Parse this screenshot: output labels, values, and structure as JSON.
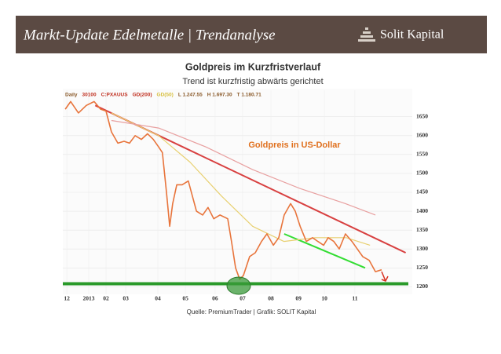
{
  "header": {
    "title": "Markt-Update Edelmetalle | Trendanalyse",
    "brand": "Solit Kapital"
  },
  "chart_data": {
    "type": "line",
    "title": "Goldpreis im Kurzfristverlauf",
    "subtitle": "Trend ist kurzfristig abwärts gerichtet",
    "annotation": "Goldpreis in US-Dollar",
    "source": "Quelle: PremiumTrader | Grafik: SOLIT Kapital",
    "legend_items": [
      {
        "text": "Daily",
        "color": "#8a5a2a"
      },
      {
        "text": "30100",
        "color": "#c03020"
      },
      {
        "text": "C:PXAUUS",
        "color": "#c03020"
      },
      {
        "text": "GD(200)",
        "color": "#c03020"
      },
      {
        "text": "GD(50)",
        "color": "#d8c040"
      },
      {
        "text": "L 1.247.55",
        "color": "#8a5a2a"
      },
      {
        "text": "H 1.697.30",
        "color": "#8a5a2a"
      },
      {
        "text": "T 1.180.71",
        "color": "#8a5a2a"
      }
    ],
    "xlim": [
      -0.2,
      12.6
    ],
    "ylim": [
      1180,
      1720
    ],
    "yticks": [
      1200,
      1250,
      1300,
      1350,
      1400,
      1450,
      1500,
      1550,
      1600,
      1650
    ],
    "xticks": [
      {
        "value": -0.05,
        "label": "12"
      },
      {
        "value": 0.76,
        "label": "2013"
      },
      {
        "value": 1.4,
        "label": "02"
      },
      {
        "value": 2.13,
        "label": "03"
      },
      {
        "value": 3.32,
        "label": "04"
      },
      {
        "value": 4.34,
        "label": "05"
      },
      {
        "value": 5.44,
        "label": "06"
      },
      {
        "value": 6.46,
        "label": "07"
      },
      {
        "value": 7.51,
        "label": "08"
      },
      {
        "value": 8.53,
        "label": "09"
      },
      {
        "value": 9.49,
        "label": "10"
      },
      {
        "value": 10.62,
        "label": "11"
      }
    ],
    "grid": true,
    "series": [
      {
        "name": "Goldpreis",
        "color": "#e8743b",
        "width": 1.6,
        "x": [
          -0.11,
          0.09,
          0.38,
          0.67,
          0.96,
          1.2,
          1.4,
          1.6,
          1.84,
          2.07,
          2.27,
          2.48,
          2.71,
          2.94,
          3.15,
          3.35,
          3.49,
          3.64,
          3.76,
          3.87,
          4.02,
          4.22,
          4.45,
          4.6,
          4.75,
          4.98,
          5.18,
          5.39,
          5.62,
          5.91,
          6.05,
          6.2,
          6.35,
          6.49,
          6.72,
          6.93,
          7.16,
          7.36,
          7.6,
          7.8,
          8.0,
          8.24,
          8.41,
          8.59,
          8.82,
          9.05,
          9.25,
          9.46,
          9.63,
          9.84,
          10.04,
          10.27,
          10.51,
          10.71,
          10.91,
          11.15,
          11.38,
          11.61
        ],
        "values": [
          1670,
          1690,
          1660,
          1680,
          1690,
          1670,
          1665,
          1610,
          1580,
          1585,
          1580,
          1600,
          1590,
          1605,
          1590,
          1570,
          1555,
          1450,
          1360,
          1420,
          1470,
          1470,
          1480,
          1440,
          1400,
          1390,
          1410,
          1380,
          1390,
          1380,
          1320,
          1250,
          1220,
          1230,
          1280,
          1290,
          1320,
          1340,
          1310,
          1330,
          1390,
          1420,
          1400,
          1360,
          1320,
          1330,
          1320,
          1310,
          1330,
          1320,
          1300,
          1340,
          1320,
          1300,
          1280,
          1270,
          1240,
          1245
        ]
      },
      {
        "name": "GD(200)",
        "color": "#e8a0a0",
        "width": 1.2,
        "x": [
          1.6,
          3.35,
          5.1,
          6.83,
          8.59,
          10.27,
          11.38
        ],
        "values": [
          1640,
          1620,
          1570,
          1510,
          1460,
          1420,
          1390
        ]
      },
      {
        "name": "GD(50)",
        "color": "#e8d070",
        "width": 1.2,
        "x": [
          1.6,
          3.35,
          4.51,
          5.68,
          6.83,
          7.99,
          9.15,
          10.3,
          11.18
        ],
        "values": [
          1660,
          1600,
          1530,
          1440,
          1360,
          1320,
          1330,
          1330,
          1310
        ]
      }
    ],
    "trendlines": [
      {
        "color": "#d84040",
        "x": [
          1.0,
          12.5
        ],
        "values": [
          1680,
          1290
        ]
      },
      {
        "color": "#33dd33",
        "x": [
          8.0,
          11.0
        ],
        "values": [
          1340,
          1250
        ]
      },
      {
        "color": "#2a9a2a",
        "x": [
          -0.2,
          12.6
        ],
        "values": [
          1208,
          1208
        ]
      }
    ]
  }
}
